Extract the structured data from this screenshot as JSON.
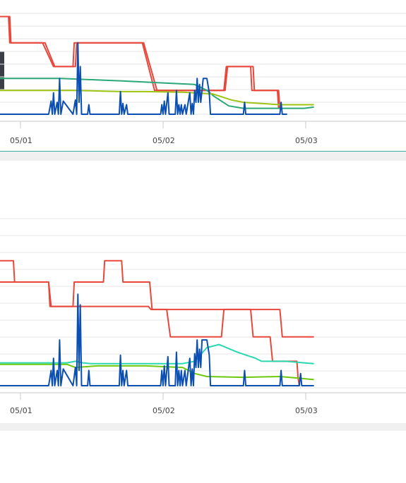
{
  "chart_data": [
    {
      "type": "line",
      "x_ticks": [
        "05/01",
        "05/02",
        "05/03"
      ],
      "xlim": [
        0,
        3
      ],
      "ylim": [
        0,
        9
      ],
      "grid": true,
      "legend": "none",
      "series": [
        {
          "color": "#e8483b",
          "points": [
            [
              0,
              8.2
            ],
            [
              0.07,
              8.2
            ],
            [
              0.08,
              6.0
            ],
            [
              0.35,
              6.0
            ],
            [
              0.44,
              4.0
            ],
            [
              0.6,
              4.0
            ],
            [
              0.61,
              6.0
            ],
            [
              1.17,
              6.0
            ],
            [
              1.27,
              2.0
            ],
            [
              1.84,
              2.0
            ],
            [
              1.86,
              4.0
            ],
            [
              2.06,
              4.0
            ],
            [
              2.07,
              2.0
            ],
            [
              2.28,
              2.0
            ],
            [
              2.29,
              0.5
            ]
          ]
        },
        {
          "color": "#e8483b",
          "points": [
            [
              0,
              8.2
            ],
            [
              0.08,
              8.2
            ],
            [
              0.09,
              6.0
            ],
            [
              0.37,
              6.0
            ],
            [
              0.45,
              4.0
            ],
            [
              0.62,
              4.0
            ],
            [
              0.63,
              6.0
            ],
            [
              1.18,
              6.0
            ],
            [
              1.29,
              2.0
            ],
            [
              1.85,
              2.0
            ],
            [
              1.87,
              4.0
            ],
            [
              2.08,
              4.0
            ],
            [
              2.09,
              2.0
            ],
            [
              2.29,
              2.0
            ],
            [
              2.3,
              0.5
            ]
          ]
        },
        {
          "color": "#2aa876",
          "points": [
            [
              0,
              3.0
            ],
            [
              0.5,
              3.0
            ],
            [
              1.0,
              2.8
            ],
            [
              1.4,
              2.6
            ],
            [
              1.6,
              2.5
            ],
            [
              1.7,
              2.0
            ],
            [
              1.76,
              1.5
            ],
            [
              1.88,
              0.7
            ],
            [
              2.0,
              0.5
            ],
            [
              2.5,
              0.5
            ],
            [
              2.58,
              0.6
            ]
          ]
        },
        {
          "color": "#9ec413",
          "points": [
            [
              0,
              2.0
            ],
            [
              0.6,
              2.0
            ],
            [
              1.0,
              1.9
            ],
            [
              1.2,
              1.9
            ],
            [
              1.5,
              1.85
            ],
            [
              1.75,
              1.7
            ],
            [
              1.9,
              1.2
            ],
            [
              2.0,
              1.0
            ],
            [
              2.3,
              0.8
            ],
            [
              2.58,
              0.8
            ]
          ]
        },
        {
          "color": "#0b4fb3",
          "points": [
            [
              0,
              0
            ],
            [
              0.4,
              0
            ],
            [
              0.42,
              1.1
            ],
            [
              0.43,
              0
            ],
            [
              0.44,
              1.8
            ],
            [
              0.45,
              0
            ],
            [
              0.47,
              1.0
            ],
            [
              0.48,
              0
            ],
            [
              0.49,
              3.0
            ],
            [
              0.5,
              0
            ],
            [
              0.52,
              1.1
            ],
            [
              0.6,
              0
            ],
            [
              0.62,
              1.2
            ],
            [
              0.63,
              0
            ],
            [
              0.64,
              6.0
            ],
            [
              0.65,
              1.0
            ],
            [
              0.66,
              4.0
            ],
            [
              0.67,
              0
            ],
            [
              0.72,
              0
            ],
            [
              0.73,
              0.8
            ],
            [
              0.74,
              0
            ],
            [
              0.98,
              0
            ],
            [
              0.99,
              1.9
            ],
            [
              1.0,
              0
            ],
            [
              1.01,
              0.9
            ],
            [
              1.02,
              0
            ],
            [
              1.04,
              0.8
            ],
            [
              1.05,
              0
            ],
            [
              1.32,
              0
            ],
            [
              1.33,
              0.8
            ],
            [
              1.34,
              0
            ],
            [
              1.35,
              1.1
            ],
            [
              1.36,
              0
            ],
            [
              1.38,
              1.8
            ],
            [
              1.39,
              0
            ],
            [
              1.44,
              0
            ],
            [
              1.45,
              2.0
            ],
            [
              1.46,
              0
            ],
            [
              1.47,
              0.8
            ],
            [
              1.48,
              0
            ],
            [
              1.49,
              0.8
            ],
            [
              1.5,
              0
            ],
            [
              1.52,
              0.8
            ],
            [
              1.53,
              0
            ],
            [
              1.56,
              1.8
            ],
            [
              1.57,
              0
            ],
            [
              1.58,
              0.9
            ],
            [
              1.59,
              0
            ],
            [
              1.6,
              2.0
            ],
            [
              1.61,
              1.0
            ],
            [
              1.62,
              3.0
            ],
            [
              1.63,
              1.0
            ],
            [
              1.64,
              2.5
            ],
            [
              1.65,
              1.0
            ],
            [
              1.66,
              2.0
            ],
            [
              1.67,
              3.0
            ],
            [
              1.7,
              3.0
            ],
            [
              1.72,
              1.8
            ],
            [
              1.73,
              0
            ],
            [
              2.0,
              0
            ],
            [
              2.01,
              1.0
            ],
            [
              2.02,
              0
            ],
            [
              2.3,
              0
            ],
            [
              2.31,
              1.0
            ],
            [
              2.32,
              0
            ],
            [
              2.36,
              0
            ]
          ]
        }
      ]
    },
    {
      "type": "line",
      "x_ticks": [
        "05/01",
        "05/02",
        "05/03"
      ],
      "xlim": [
        0,
        3
      ],
      "ylim": [
        0,
        10.5
      ],
      "grid": true,
      "legend": "none",
      "series": [
        {
          "color": "#e8483b",
          "points": [
            [
              0,
              8.2
            ],
            [
              0.11,
              8.2
            ],
            [
              0.12,
              6.8
            ],
            [
              0.4,
              6.8
            ],
            [
              0.42,
              5.2
            ],
            [
              0.6,
              5.2
            ],
            [
              0.61,
              6.8
            ],
            [
              0.85,
              6.8
            ],
            [
              0.86,
              8.2
            ],
            [
              1.0,
              8.2
            ],
            [
              1.01,
              6.8
            ],
            [
              1.23,
              6.8
            ],
            [
              1.25,
              5.0
            ],
            [
              1.37,
              5.0
            ],
            [
              1.4,
              3.2
            ],
            [
              1.82,
              3.2
            ],
            [
              1.84,
              5.0
            ],
            [
              2.3,
              5.0
            ],
            [
              2.32,
              3.2
            ],
            [
              2.58,
              3.2
            ]
          ]
        },
        {
          "color": "#e8483b",
          "points": [
            [
              0,
              6.8
            ],
            [
              0.4,
              6.8
            ],
            [
              0.41,
              5.2
            ],
            [
              1.22,
              5.2
            ],
            [
              1.24,
              5.0
            ],
            [
              1.82,
              5.0
            ],
            [
              1.83,
              5.0
            ],
            [
              2.06,
              5.0
            ],
            [
              2.08,
              3.2
            ],
            [
              2.22,
              3.2
            ],
            [
              2.24,
              1.6
            ],
            [
              2.44,
              1.6
            ],
            [
              2.45,
              0.5
            ],
            [
              2.46,
              0
            ]
          ]
        },
        {
          "color": "#2ad8b0",
          "points": [
            [
              0,
              1.5
            ],
            [
              0.55,
              1.5
            ],
            [
              0.62,
              1.6
            ],
            [
              0.68,
              1.5
            ],
            [
              0.75,
              1.45
            ],
            [
              1.2,
              1.45
            ],
            [
              1.5,
              1.45
            ],
            [
              1.6,
              1.6
            ],
            [
              1.7,
              2.5
            ],
            [
              1.8,
              2.7
            ],
            [
              1.95,
              2.2
            ],
            [
              2.1,
              1.8
            ],
            [
              2.15,
              1.6
            ],
            [
              2.25,
              1.6
            ],
            [
              2.35,
              1.6
            ],
            [
              2.5,
              1.5
            ],
            [
              2.58,
              1.45
            ]
          ]
        },
        {
          "color": "#6dc80c",
          "points": [
            [
              0,
              1.4
            ],
            [
              0.25,
              1.4
            ],
            [
              0.55,
              1.4
            ],
            [
              0.62,
              1.2
            ],
            [
              0.8,
              1.3
            ],
            [
              1.2,
              1.3
            ],
            [
              1.5,
              1.2
            ],
            [
              1.6,
              0.8
            ],
            [
              1.7,
              0.6
            ],
            [
              2.0,
              0.55
            ],
            [
              2.3,
              0.6
            ],
            [
              2.45,
              0.5
            ],
            [
              2.58,
              0.4
            ]
          ]
        },
        {
          "color": "#0b4fb3",
          "points": [
            [
              0,
              0
            ],
            [
              0.4,
              0
            ],
            [
              0.42,
              1.0
            ],
            [
              0.43,
              0
            ],
            [
              0.44,
              1.8
            ],
            [
              0.45,
              0
            ],
            [
              0.47,
              1.0
            ],
            [
              0.48,
              0
            ],
            [
              0.49,
              3.0
            ],
            [
              0.5,
              0
            ],
            [
              0.52,
              1.1
            ],
            [
              0.6,
              0
            ],
            [
              0.62,
              1.2
            ],
            [
              0.63,
              0
            ],
            [
              0.64,
              6.0
            ],
            [
              0.65,
              1.0
            ],
            [
              0.66,
              5.3
            ],
            [
              0.67,
              0
            ],
            [
              0.72,
              0
            ],
            [
              0.73,
              1.0
            ],
            [
              0.74,
              0
            ],
            [
              0.98,
              0
            ],
            [
              0.99,
              2.0
            ],
            [
              1.0,
              0
            ],
            [
              1.01,
              1.0
            ],
            [
              1.02,
              0
            ],
            [
              1.04,
              1.0
            ],
            [
              1.05,
              0
            ],
            [
              1.32,
              0
            ],
            [
              1.33,
              1.0
            ],
            [
              1.34,
              0
            ],
            [
              1.35,
              1.3
            ],
            [
              1.36,
              0
            ],
            [
              1.38,
              1.9
            ],
            [
              1.39,
              0
            ],
            [
              1.44,
              0
            ],
            [
              1.45,
              2.2
            ],
            [
              1.46,
              0
            ],
            [
              1.47,
              1.0
            ],
            [
              1.48,
              0
            ],
            [
              1.49,
              1.0
            ],
            [
              1.5,
              0
            ],
            [
              1.52,
              1.0
            ],
            [
              1.53,
              0
            ],
            [
              1.56,
              1.8
            ],
            [
              1.57,
              0
            ],
            [
              1.58,
              1.1
            ],
            [
              1.59,
              0
            ],
            [
              1.6,
              2.1
            ],
            [
              1.61,
              1.2
            ],
            [
              1.62,
              3.0
            ],
            [
              1.63,
              1.2
            ],
            [
              1.64,
              2.4
            ],
            [
              1.65,
              1.2
            ],
            [
              1.66,
              3.0
            ],
            [
              1.67,
              3.0
            ],
            [
              1.7,
              3.0
            ],
            [
              1.72,
              2.0
            ],
            [
              1.73,
              0
            ],
            [
              2.0,
              0
            ],
            [
              2.01,
              1.0
            ],
            [
              2.02,
              0
            ],
            [
              2.3,
              0
            ],
            [
              2.31,
              1.0
            ],
            [
              2.32,
              0
            ],
            [
              2.46,
              0
            ],
            [
              2.47,
              0.8
            ],
            [
              2.48,
              0
            ],
            [
              2.58,
              0
            ]
          ]
        }
      ]
    }
  ]
}
